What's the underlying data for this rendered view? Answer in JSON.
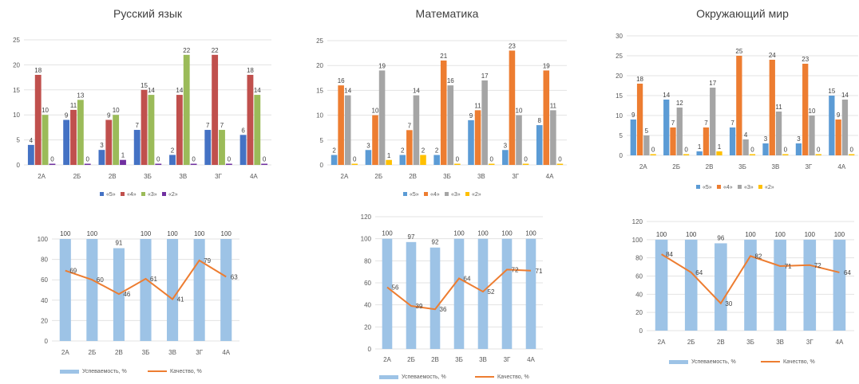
{
  "chart_data": [
    {
      "type": "bar",
      "title": "Русский язык",
      "categories": [
        "2А",
        "2Б",
        "2В",
        "3Б",
        "3В",
        "3Г",
        "4А"
      ],
      "ylim": [
        0,
        25
      ],
      "yticks": [
        0,
        5,
        10,
        15,
        20,
        25
      ],
      "series": [
        {
          "name": "«5»",
          "color": "#4472C4",
          "values": [
            4,
            9,
            3,
            7,
            2,
            7,
            6
          ]
        },
        {
          "name": "«4»",
          "color": "#C0504D",
          "values": [
            18,
            11,
            9,
            15,
            14,
            22,
            18
          ]
        },
        {
          "name": "«3»",
          "color": "#9BBB59",
          "values": [
            10,
            13,
            10,
            14,
            22,
            7,
            14
          ]
        },
        {
          "name": "«2»",
          "color": "#7030A0",
          "values": [
            0,
            0,
            1,
            0,
            0,
            0,
            0
          ]
        }
      ],
      "legend": "bottom"
    },
    {
      "type": "bar",
      "title": "Математика",
      "categories": [
        "2А",
        "2Б",
        "2В",
        "3Б",
        "3В",
        "3Г",
        "4А"
      ],
      "ylim": [
        0,
        25
      ],
      "yticks": [
        0,
        5,
        10,
        15,
        20,
        25
      ],
      "series": [
        {
          "name": "«5»",
          "color": "#5B9BD5",
          "values": [
            2,
            3,
            2,
            2,
            9,
            3,
            8
          ]
        },
        {
          "name": "«4»",
          "color": "#ED7D31",
          "values": [
            16,
            10,
            7,
            21,
            11,
            23,
            19
          ]
        },
        {
          "name": "«3»",
          "color": "#A5A5A5",
          "values": [
            14,
            19,
            14,
            16,
            17,
            10,
            11
          ]
        },
        {
          "name": "«2»",
          "color": "#FFC000",
          "values": [
            0,
            1,
            2,
            0,
            0,
            0,
            0
          ]
        }
      ],
      "legend": "bottom"
    },
    {
      "type": "bar",
      "title": "Окружающий мир",
      "categories": [
        "2А",
        "2Б",
        "2В",
        "3Б",
        "3В",
        "3Г",
        "4А"
      ],
      "ylim": [
        0,
        30
      ],
      "yticks": [
        0,
        5,
        10,
        15,
        20,
        25,
        30
      ],
      "series": [
        {
          "name": "«5»",
          "color": "#5B9BD5",
          "values": [
            9,
            14,
            1,
            7,
            3,
            3,
            15
          ]
        },
        {
          "name": "«4»",
          "color": "#ED7D31",
          "values": [
            18,
            7,
            7,
            25,
            24,
            23,
            9
          ]
        },
        {
          "name": "«3»",
          "color": "#A5A5A5",
          "values": [
            5,
            12,
            17,
            4,
            11,
            10,
            14
          ]
        },
        {
          "name": "«2»",
          "color": "#FFC000",
          "values": [
            0,
            0,
            1,
            0,
            0,
            0,
            0
          ]
        }
      ],
      "legend": "bottom"
    },
    {
      "type": "bar+line",
      "categories": [
        "2А",
        "2Б",
        "2В",
        "3Б",
        "3В",
        "3Г",
        "4А"
      ],
      "ylim": [
        0,
        100
      ],
      "yticks": [
        0,
        20,
        40,
        60,
        80,
        100
      ],
      "series": [
        {
          "name": "Успеваемость, %",
          "kind": "bar",
          "color": "#9DC3E6",
          "values": [
            100,
            100,
            91,
            100,
            100,
            100,
            100
          ]
        },
        {
          "name": "Качество, %",
          "kind": "line",
          "color": "#ED7D31",
          "values": [
            69,
            60,
            46,
            61,
            41,
            79,
            63
          ]
        }
      ],
      "legend": "bottom"
    },
    {
      "type": "bar+line",
      "categories": [
        "2А",
        "2Б",
        "2В",
        "3Б",
        "3В",
        "3Г",
        "4А"
      ],
      "ylim": [
        0,
        120
      ],
      "yticks": [
        0,
        20,
        40,
        60,
        80,
        100,
        120
      ],
      "series": [
        {
          "name": "Успеваемость, %",
          "kind": "bar",
          "color": "#9DC3E6",
          "values": [
            100,
            97,
            92,
            100,
            100,
            100,
            100
          ]
        },
        {
          "name": "Качество, %",
          "kind": "line",
          "color": "#ED7D31",
          "values": [
            56,
            39,
            36,
            64,
            52,
            72,
            71
          ]
        }
      ],
      "legend": "bottom"
    },
    {
      "type": "bar+line",
      "categories": [
        "2А",
        "2Б",
        "2В",
        "3Б",
        "3В",
        "3Г",
        "4А"
      ],
      "ylim": [
        0,
        120
      ],
      "yticks": [
        0,
        20,
        40,
        60,
        80,
        100,
        120
      ],
      "series": [
        {
          "name": "Успеваемость, %",
          "kind": "bar",
          "color": "#9DC3E6",
          "values": [
            100,
            100,
            96,
            100,
            100,
            100,
            100
          ]
        },
        {
          "name": "Качество, %",
          "kind": "line",
          "color": "#ED7D31",
          "values": [
            84,
            64,
            30,
            82,
            71,
            72,
            64
          ]
        }
      ],
      "legend": "bottom"
    }
  ]
}
